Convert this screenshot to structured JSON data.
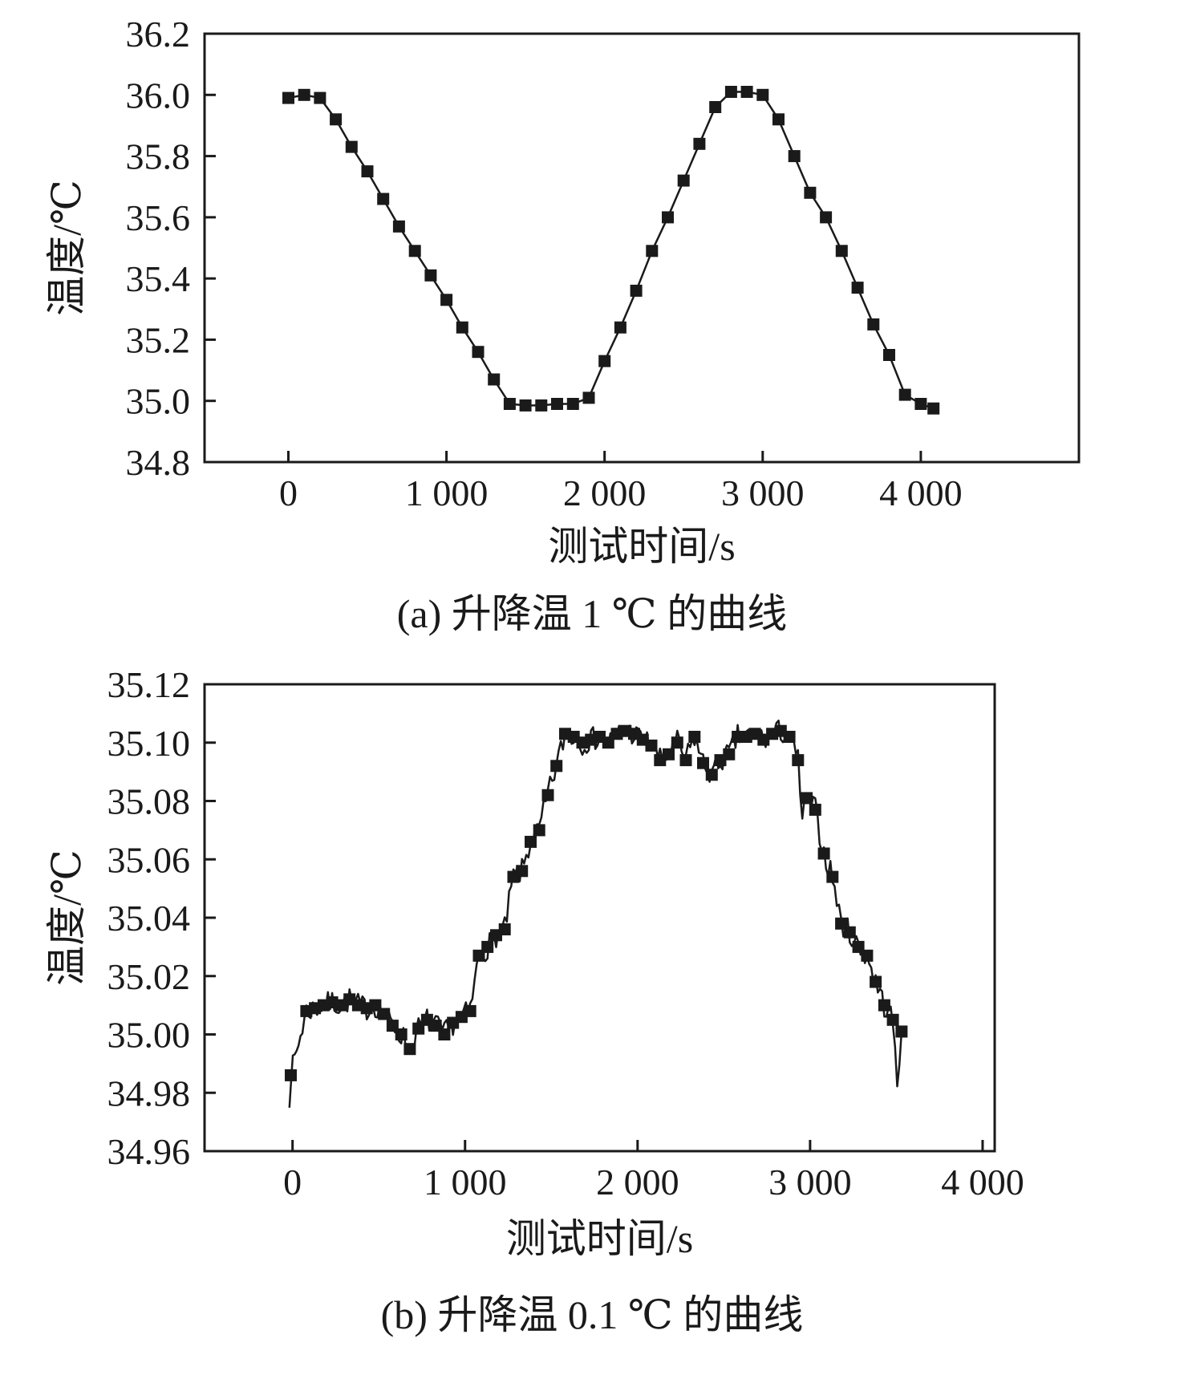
{
  "colors": {
    "axis": "#1a1a1a",
    "line": "#1a1a1a",
    "marker": "#1a1a1a",
    "background": "#ffffff"
  },
  "chart_data": [
    {
      "id": "a",
      "type": "line",
      "caption": "(a) 升降温 1 ℃ 的曲线",
      "xlabel": "测试时间/s",
      "ylabel": "温度/℃",
      "xlim": [
        -530,
        5000
      ],
      "ylim": [
        34.8,
        36.2
      ],
      "grid": false,
      "legend": "none",
      "xticks": [
        {
          "v": 0,
          "label": "0"
        },
        {
          "v": 1000,
          "label": "1 000"
        },
        {
          "v": 2000,
          "label": "2 000"
        },
        {
          "v": 3000,
          "label": "3 000"
        },
        {
          "v": 4000,
          "label": "4 000"
        }
      ],
      "yticks": [
        {
          "v": 34.8,
          "label": "34.8"
        },
        {
          "v": 35.0,
          "label": "35.0"
        },
        {
          "v": 35.2,
          "label": "35.2"
        },
        {
          "v": 35.4,
          "label": "35.4"
        },
        {
          "v": 35.6,
          "label": "35.6"
        },
        {
          "v": 35.8,
          "label": "35.8"
        },
        {
          "v": 36.0,
          "label": "36.0"
        },
        {
          "v": 36.2,
          "label": "36.2"
        }
      ],
      "markers": {
        "x": [
          0,
          100,
          200,
          300,
          400,
          500,
          600,
          700,
          800,
          900,
          1000,
          1100,
          1200,
          1300,
          1400,
          1500,
          1600,
          1700,
          1800,
          1900,
          2000,
          2100,
          2200,
          2300,
          2400,
          2500,
          2600,
          2700,
          2800,
          2900,
          3000,
          3100,
          3200,
          3300,
          3400,
          3500,
          3600,
          3700,
          3800,
          3900,
          4000,
          4080
        ],
        "y": [
          35.99,
          36.0,
          35.99,
          35.92,
          35.83,
          35.75,
          35.66,
          35.57,
          35.49,
          35.41,
          35.33,
          35.24,
          35.16,
          35.07,
          34.99,
          34.985,
          34.985,
          34.99,
          34.99,
          35.01,
          35.13,
          35.24,
          35.36,
          35.49,
          35.6,
          35.72,
          35.84,
          35.96,
          36.01,
          36.01,
          36.0,
          35.92,
          35.8,
          35.68,
          35.6,
          35.49,
          35.37,
          35.25,
          35.15,
          35.02,
          34.99,
          34.975
        ]
      },
      "line_extra": [],
      "noise": {
        "seed": 1,
        "amplitude": 0,
        "step": 100
      }
    },
    {
      "id": "b",
      "type": "line",
      "caption": "(b) 升降温 0.1 ℃ 的曲线",
      "xlabel": "测试时间/s",
      "ylabel": "温度/℃",
      "xlim": [
        -510,
        4070
      ],
      "ylim": [
        34.96,
        35.12
      ],
      "grid": false,
      "legend": "none",
      "xticks": [
        {
          "v": 0,
          "label": "0"
        },
        {
          "v": 1000,
          "label": "1 000"
        },
        {
          "v": 2000,
          "label": "2 000"
        },
        {
          "v": 3000,
          "label": "3 000"
        },
        {
          "v": 4000,
          "label": "4 000"
        }
      ],
      "yticks": [
        {
          "v": 34.96,
          "label": "34.96"
        },
        {
          "v": 34.98,
          "label": "34.98"
        },
        {
          "v": 35.0,
          "label": "35.00"
        },
        {
          "v": 35.02,
          "label": "35.02"
        },
        {
          "v": 35.04,
          "label": "35.04"
        },
        {
          "v": 35.06,
          "label": "35.06"
        },
        {
          "v": 35.08,
          "label": "35.08"
        },
        {
          "v": 35.1,
          "label": "35.10"
        },
        {
          "v": 35.12,
          "label": "35.12"
        }
      ],
      "markers": {
        "x": [
          -10,
          80,
          130,
          180,
          230,
          280,
          330,
          380,
          430,
          480,
          530,
          580,
          630,
          680,
          730,
          780,
          830,
          880,
          930,
          980,
          1030,
          1080,
          1130,
          1180,
          1230,
          1280,
          1330,
          1380,
          1430,
          1480,
          1530,
          1580,
          1630,
          1680,
          1730,
          1780,
          1830,
          1880,
          1930,
          1980,
          2030,
          2080,
          2130,
          2180,
          2230,
          2280,
          2330,
          2380,
          2430,
          2480,
          2530,
          2580,
          2630,
          2680,
          2730,
          2780,
          2830,
          2880,
          2930,
          2980,
          3030,
          3080,
          3130,
          3180,
          3230,
          3280,
          3330,
          3380,
          3430,
          3480,
          3530
        ],
        "y": [
          34.986,
          35.008,
          35.009,
          35.01,
          35.011,
          35.01,
          35.012,
          35.01,
          35.009,
          35.01,
          35.007,
          35.003,
          35.0,
          34.995,
          35.002,
          35.005,
          35.003,
          35.0,
          35.004,
          35.006,
          35.008,
          35.027,
          35.03,
          35.034,
          35.036,
          35.054,
          35.056,
          35.066,
          35.07,
          35.082,
          35.092,
          35.103,
          35.102,
          35.1,
          35.101,
          35.102,
          35.1,
          35.103,
          35.104,
          35.103,
          35.101,
          35.099,
          35.094,
          35.096,
          35.1,
          35.094,
          35.102,
          35.093,
          35.089,
          35.094,
          35.096,
          35.102,
          35.102,
          35.103,
          35.101,
          35.103,
          35.104,
          35.102,
          35.094,
          35.081,
          35.077,
          35.062,
          35.054,
          35.038,
          35.035,
          35.03,
          35.027,
          35.018,
          35.01,
          35.005,
          35.001
        ],
        "y2_note": ""
      },
      "line_extra": [
        [
          -18,
          34.979
        ],
        [
          2955,
          35.074
        ],
        [
          3505,
          34.981
        ]
      ],
      "noise": {
        "seed": 7,
        "amplitude": 0.0042,
        "step": 12
      }
    }
  ]
}
